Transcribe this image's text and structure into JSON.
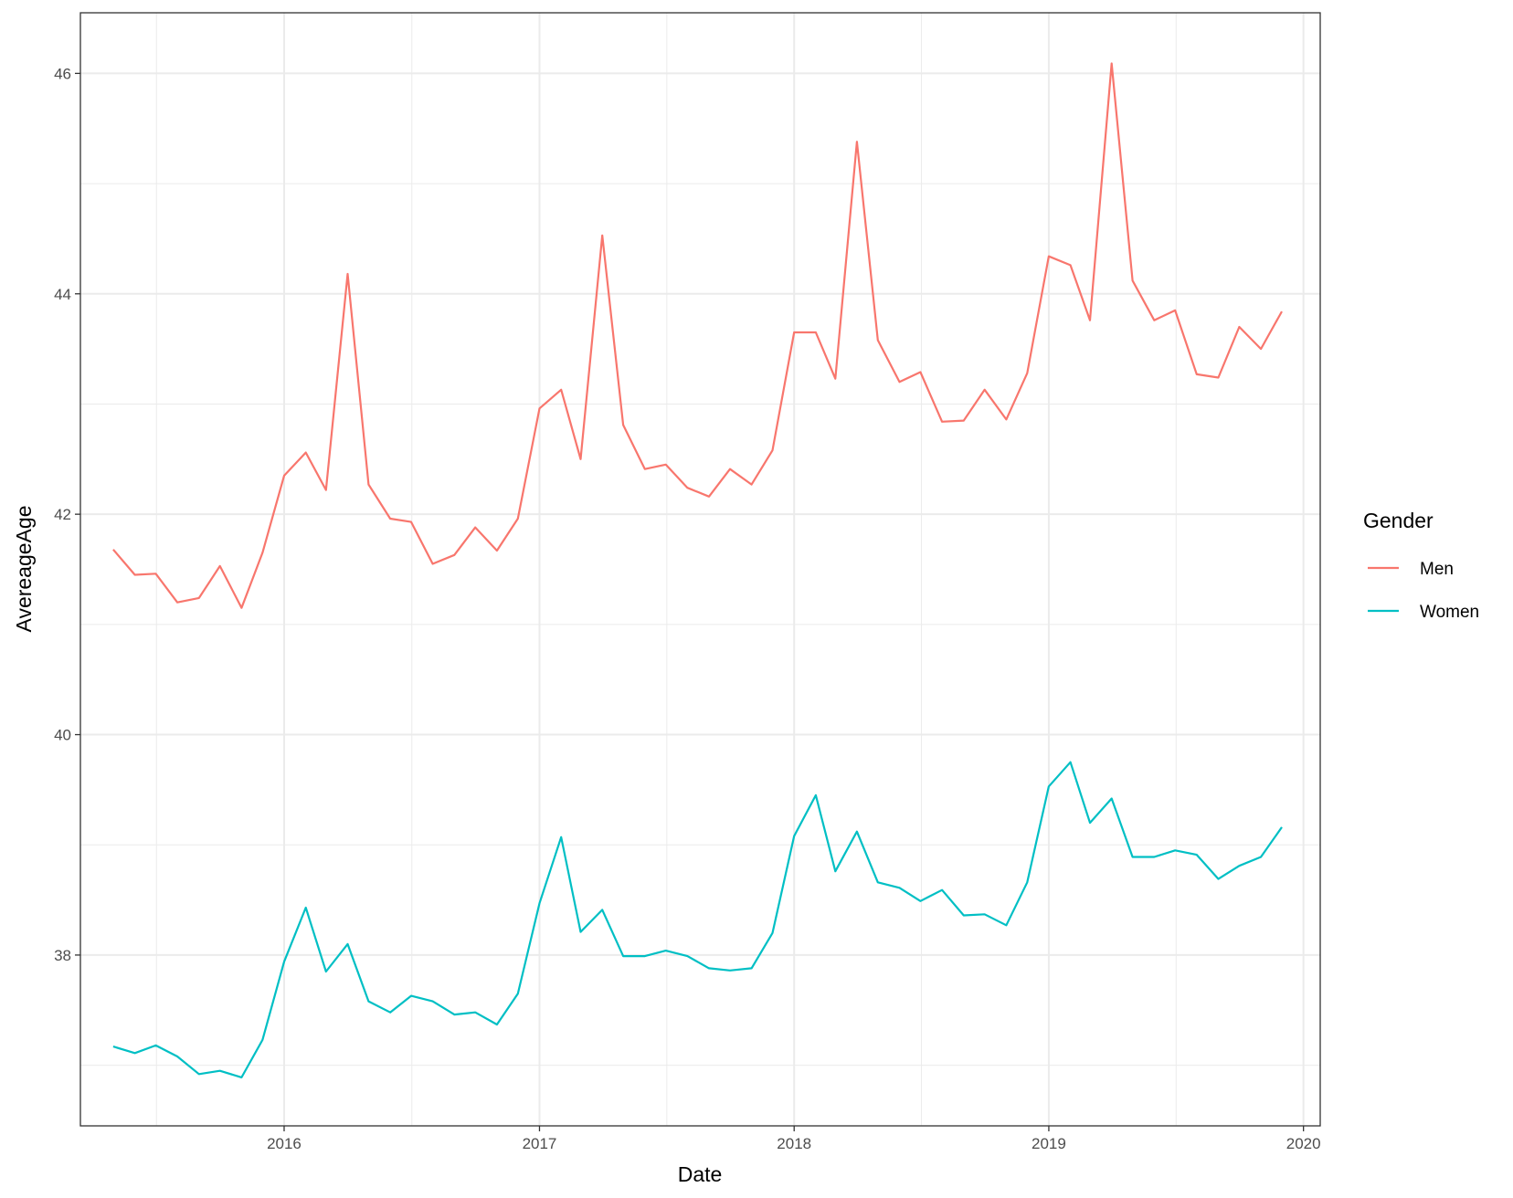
{
  "chart_data": {
    "type": "line",
    "xlabel": "Date",
    "ylabel": "AvereageAge",
    "xlim": [
      "2015-03-15",
      "2020-01-25"
    ],
    "ylim": [
      36.45,
      46.55
    ],
    "x_major_ticks": [
      "2016-01-01",
      "2017-01-01",
      "2018-01-01",
      "2019-01-01",
      "2020-01-01"
    ],
    "x_tick_labels": [
      "2016",
      "2017",
      "2018",
      "2019",
      "2020"
    ],
    "y_major_ticks": [
      38,
      40,
      42,
      44,
      46
    ],
    "y_tick_labels": [
      "38",
      "40",
      "42",
      "44",
      "46"
    ],
    "grid": true,
    "legend": {
      "title": "Gender",
      "position": "right"
    },
    "x": [
      "2015-05-01",
      "2015-06-01",
      "2015-07-01",
      "2015-08-01",
      "2015-09-01",
      "2015-10-01",
      "2015-11-01",
      "2015-12-01",
      "2016-01-01",
      "2016-02-01",
      "2016-03-01",
      "2016-04-01",
      "2016-05-01",
      "2016-06-01",
      "2016-07-01",
      "2016-08-01",
      "2016-09-01",
      "2016-10-01",
      "2016-11-01",
      "2016-12-01",
      "2017-01-01",
      "2017-02-01",
      "2017-03-01",
      "2017-04-01",
      "2017-05-01",
      "2017-06-01",
      "2017-07-01",
      "2017-08-01",
      "2017-09-01",
      "2017-10-01",
      "2017-11-01",
      "2017-12-01",
      "2018-01-01",
      "2018-02-01",
      "2018-03-01",
      "2018-04-01",
      "2018-05-01",
      "2018-06-01",
      "2018-07-01",
      "2018-08-01",
      "2018-09-01",
      "2018-10-01",
      "2018-11-01",
      "2018-12-01",
      "2019-01-01",
      "2019-02-01",
      "2019-03-01",
      "2019-04-01",
      "2019-05-01",
      "2019-06-01",
      "2019-07-01",
      "2019-08-01",
      "2019-09-01",
      "2019-10-01",
      "2019-11-01",
      "2019-12-01"
    ],
    "series": [
      {
        "name": "Men",
        "color": "#F8766D",
        "values": [
          41.68,
          41.45,
          41.46,
          41.2,
          41.24,
          41.53,
          41.15,
          41.65,
          42.35,
          42.56,
          42.22,
          44.18,
          42.27,
          41.96,
          41.93,
          41.55,
          41.63,
          41.88,
          41.67,
          41.96,
          42.96,
          43.13,
          42.5,
          44.53,
          42.81,
          42.41,
          42.45,
          42.24,
          42.16,
          42.41,
          42.27,
          42.58,
          43.65,
          43.65,
          43.23,
          45.38,
          43.58,
          43.2,
          43.29,
          42.84,
          42.85,
          43.13,
          42.86,
          43.28,
          44.34,
          44.26,
          43.76,
          46.09,
          44.12,
          43.76,
          43.85,
          43.27,
          43.24,
          43.7,
          43.5,
          43.84
        ]
      },
      {
        "name": "Women",
        "color": "#00BFC4",
        "values": [
          37.17,
          37.11,
          37.18,
          37.08,
          36.92,
          36.95,
          36.89,
          37.23,
          37.94,
          38.43,
          37.85,
          38.1,
          37.58,
          37.48,
          37.63,
          37.58,
          37.46,
          37.48,
          37.37,
          37.65,
          38.47,
          39.07,
          38.21,
          38.41,
          37.99,
          37.99,
          38.04,
          37.99,
          37.88,
          37.86,
          37.88,
          38.2,
          39.08,
          39.45,
          38.76,
          39.12,
          38.66,
          38.61,
          38.49,
          38.59,
          38.36,
          38.37,
          38.27,
          38.66,
          39.53,
          39.75,
          39.2,
          39.42,
          38.89,
          38.89,
          38.95,
          38.91,
          38.69,
          38.81,
          38.89,
          39.16
        ]
      }
    ]
  }
}
